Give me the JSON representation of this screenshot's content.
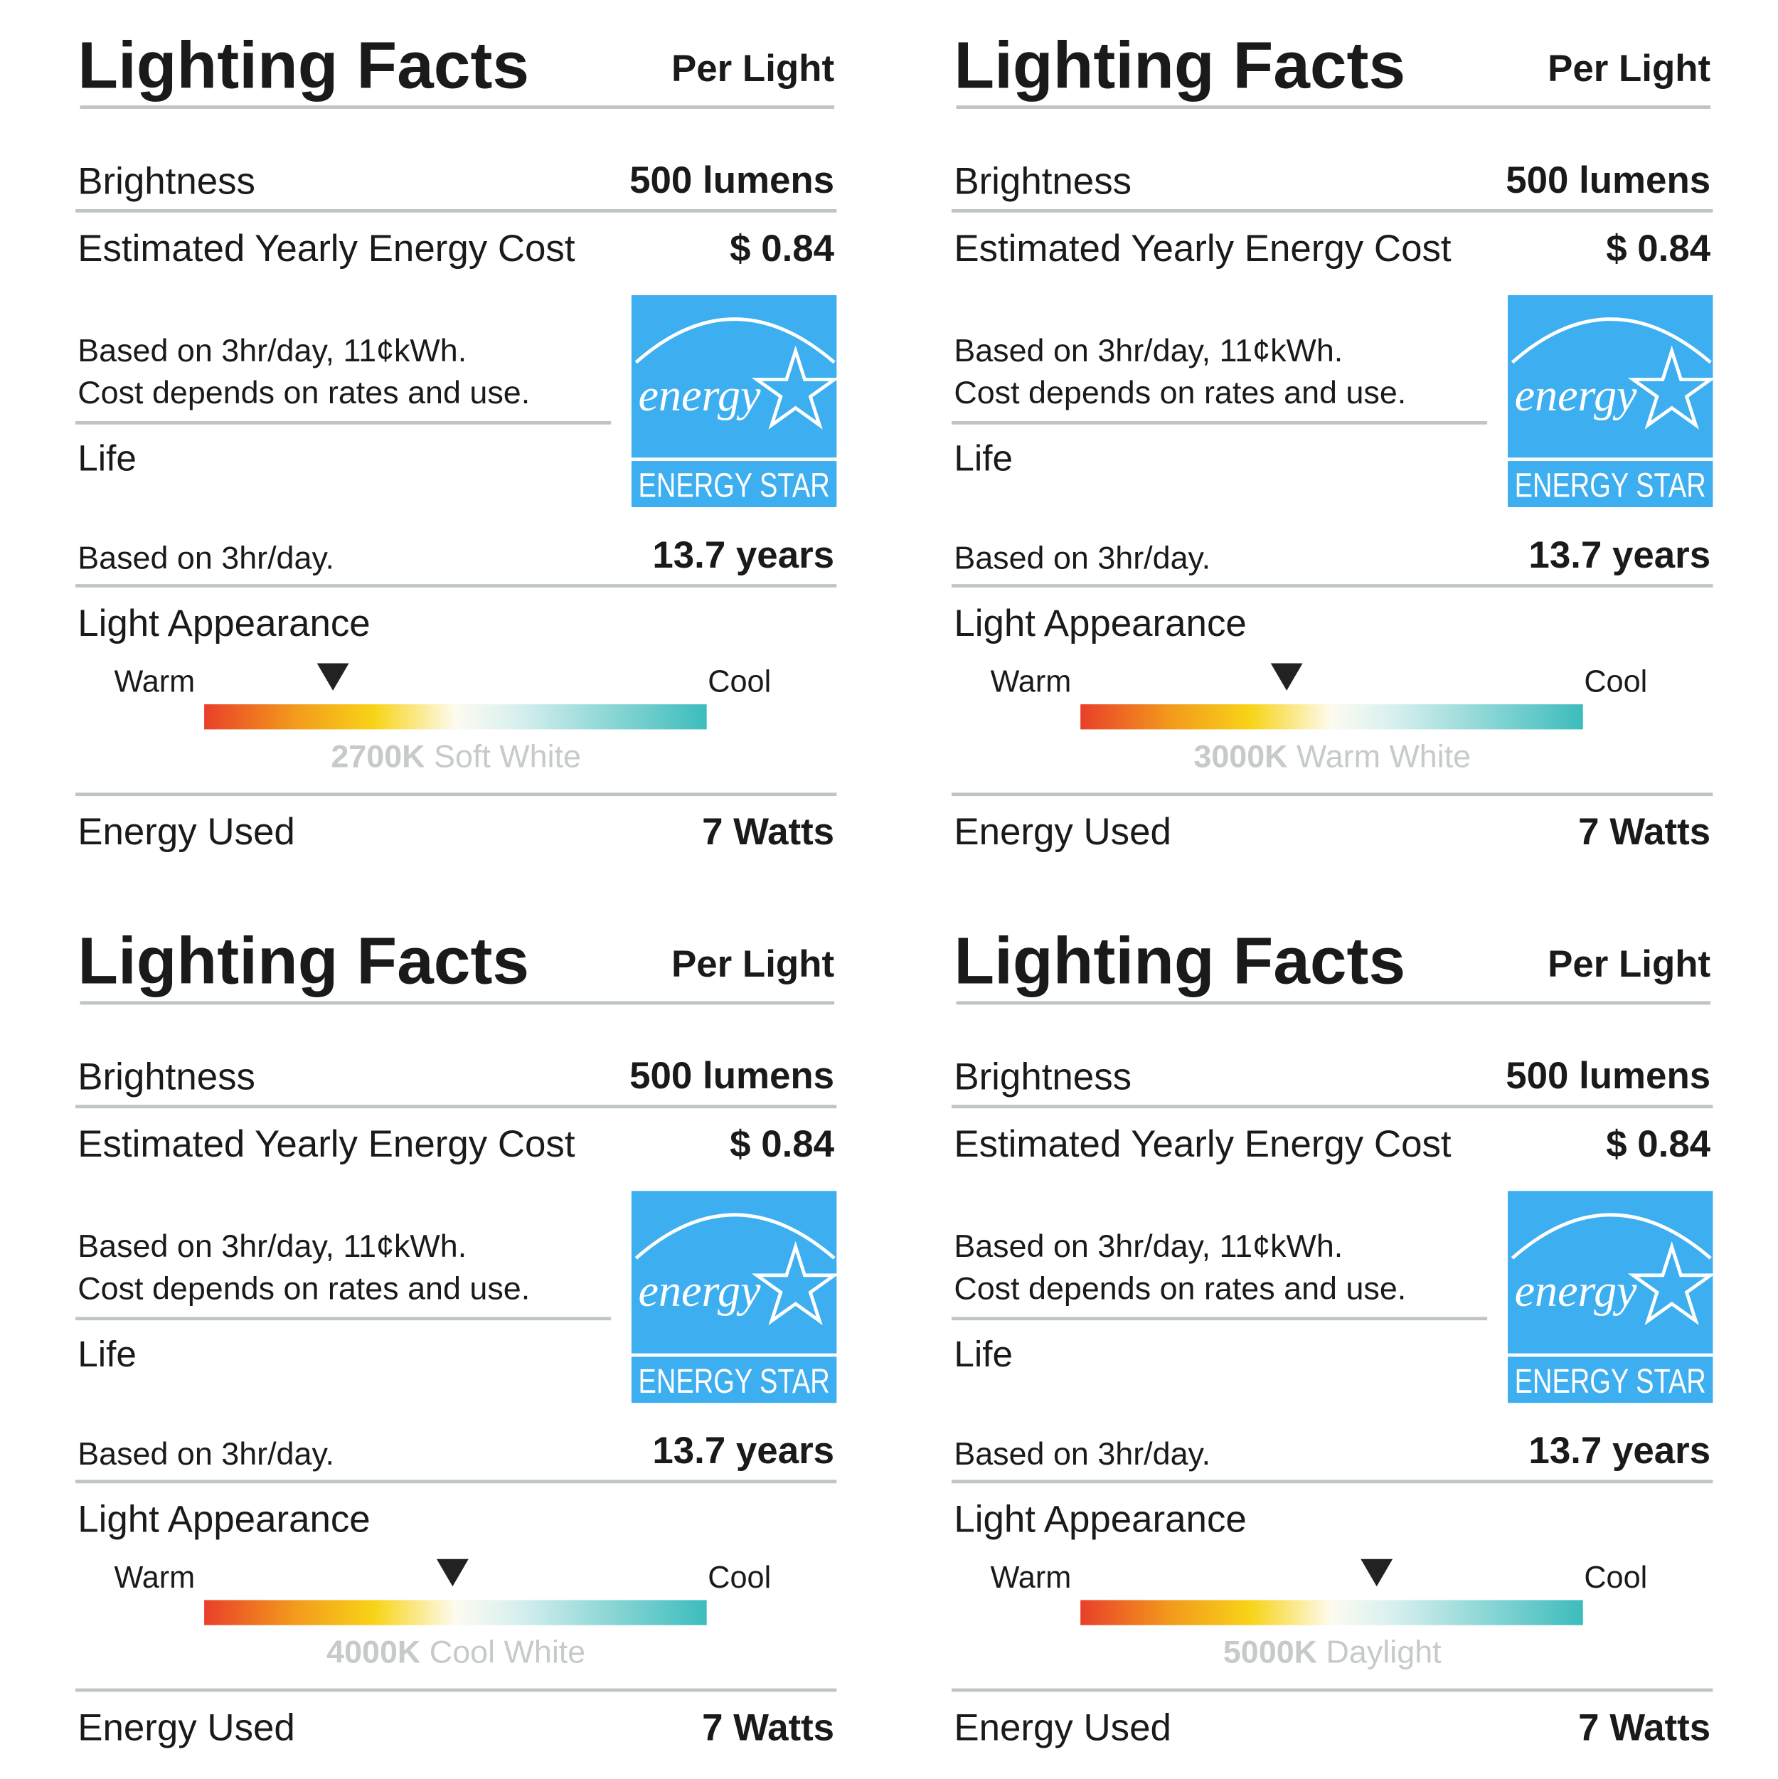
{
  "labels": [
    {
      "title": "Lighting Facts",
      "per": "Per Light",
      "brightness_label": "Brightness",
      "brightness_value": "500 lumens",
      "cost_label": "Estimated Yearly Energy Cost",
      "cost_value": "$ 0.84",
      "cost_note": [
        "Based on 3hr/day, 11¢kWh.",
        "Cost depends on rates and use."
      ],
      "life_label": "Life",
      "life_note": "Based on 3hr/day.",
      "life_value": "13.7 years",
      "appearance_label": "Light Appearance",
      "warm": "Warm",
      "cool": "Cool",
      "temperature": "2700K",
      "temperature_name": "Soft White",
      "energy_label": "Energy Used",
      "energy_value": "7 Watts",
      "logo_script": "energy",
      "logo_text": "ENERGY STAR"
    },
    {
      "title": "Lighting Facts",
      "per": "Per Light",
      "brightness_label": "Brightness",
      "brightness_value": "500 lumens",
      "cost_label": "Estimated Yearly Energy Cost",
      "cost_value": "$ 0.84",
      "cost_note": [
        "Based on 3hr/day, 11¢kWh.",
        "Cost depends on rates and use."
      ],
      "life_label": "Life",
      "life_note": "Based on 3hr/day.",
      "life_value": "13.7 years",
      "appearance_label": "Light Appearance",
      "warm": "Warm",
      "cool": "Cool",
      "temperature": "3000K",
      "temperature_name": "Warm White",
      "energy_label": "Energy Used",
      "energy_value": "7 Watts",
      "logo_script": "energy",
      "logo_text": "ENERGY STAR"
    },
    {
      "title": "Lighting Facts",
      "per": "Per Light",
      "brightness_label": "Brightness",
      "brightness_value": "500 lumens",
      "cost_label": "Estimated Yearly Energy Cost",
      "cost_value": "$ 0.84",
      "cost_note": [
        "Based on 3hr/day, 11¢kWh.",
        "Cost depends on rates and use."
      ],
      "life_label": "Life",
      "life_note": "Based on 3hr/day.",
      "life_value": "13.7 years",
      "appearance_label": "Light Appearance",
      "warm": "Warm",
      "cool": "Cool",
      "temperature": "4000K",
      "temperature_name": "Cool White",
      "energy_label": "Energy Used",
      "energy_value": "7 Watts",
      "logo_script": "energy",
      "logo_text": "ENERGY STAR"
    },
    {
      "title": "Lighting Facts",
      "per": "Per Light",
      "brightness_label": "Brightness",
      "brightness_value": "500 lumens",
      "cost_label": "Estimated Yearly Energy Cost",
      "cost_value": "$ 0.84",
      "cost_note": [
        "Based on 3hr/day, 11¢kWh.",
        "Cost depends on rates and use."
      ],
      "life_label": "Life",
      "life_note": "Based on 3hr/day.",
      "life_value": "13.7 years",
      "appearance_label": "Light Appearance",
      "warm": "Warm",
      "cool": "Cool",
      "temperature": "5000K",
      "temperature_name": "Daylight",
      "energy_label": "Energy Used",
      "energy_value": "7 Watts",
      "logo_script": "energy",
      "logo_text": "ENERGY STAR"
    }
  ]
}
